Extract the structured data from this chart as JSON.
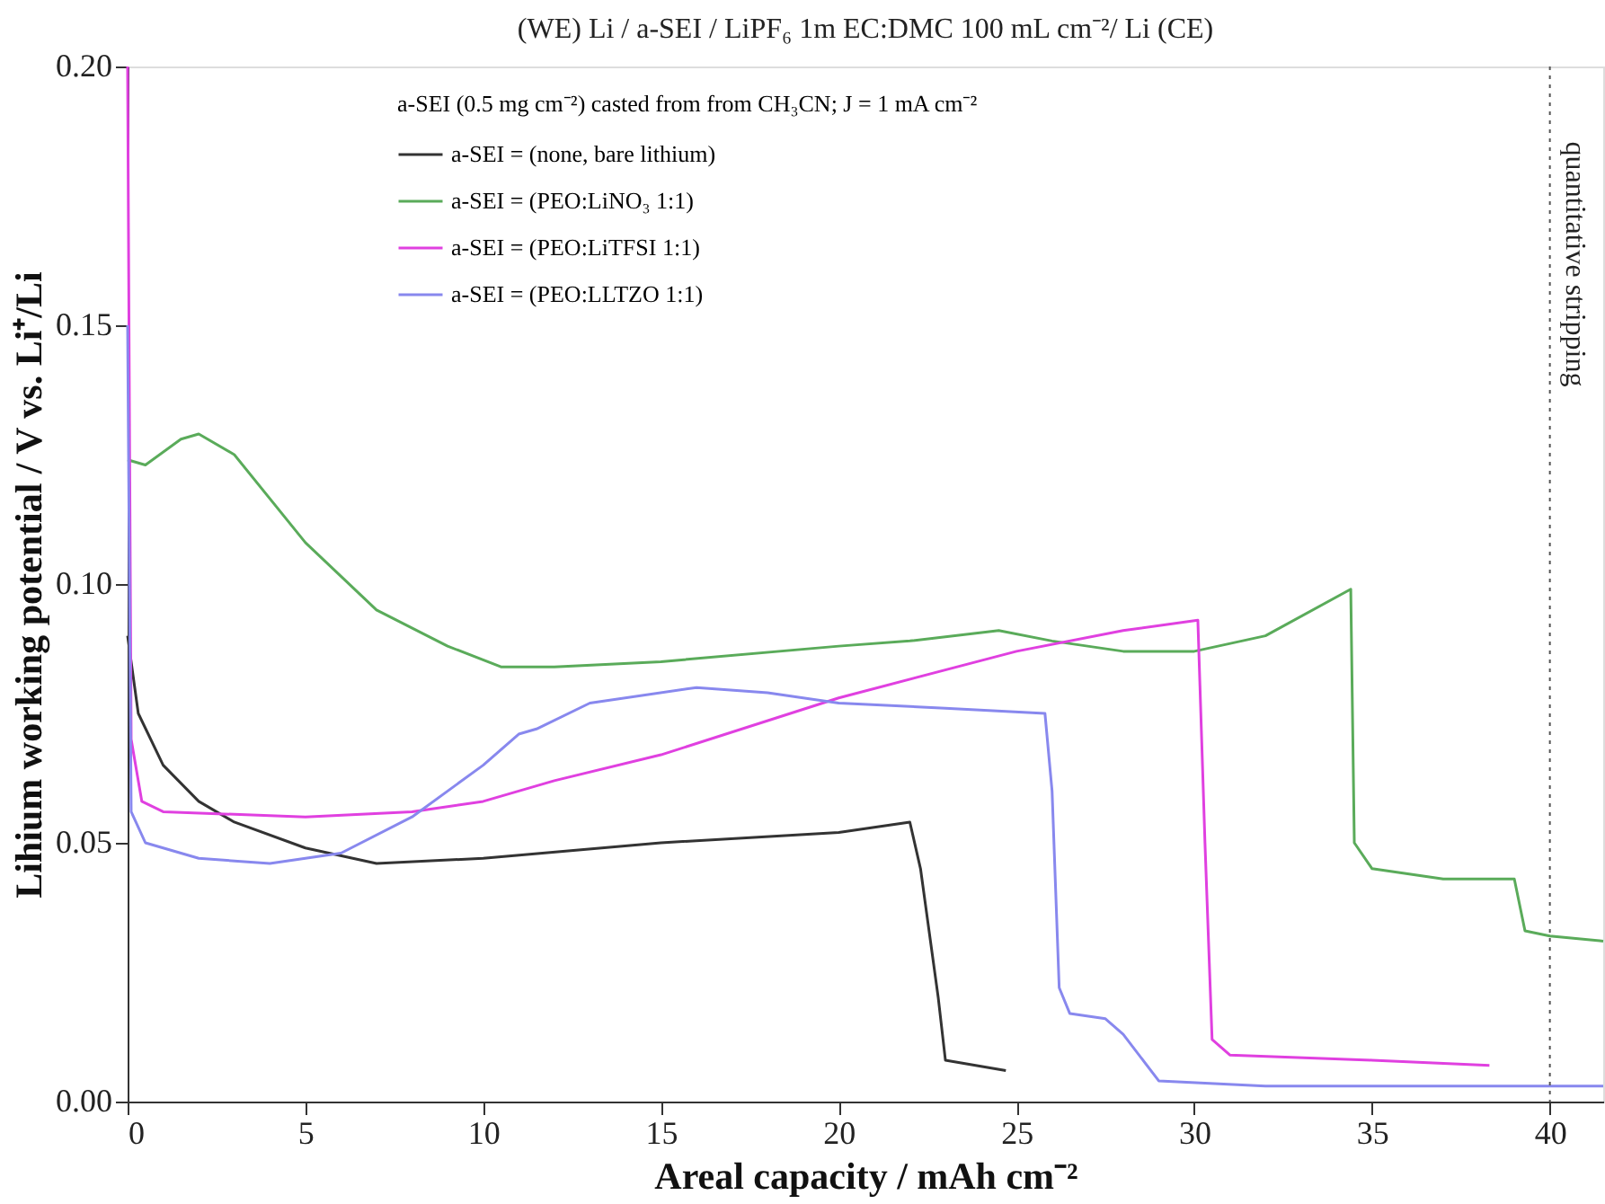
{
  "chart_data": {
    "type": "line",
    "title": "(WE) Li / a-SEI / LiPF₆ 1m EC:DMC 100 mL cm⁻²/ Li (CE)",
    "xlabel": "Areal capacity / mAh cm⁻²",
    "ylabel": "Lihium working potential / V vs. Li⁺/Li",
    "legend_title": "a-SEI (0.5 mg cm⁻²) casted from from CH₃CN; J = 1 mA cm⁻²",
    "legend": "top",
    "grid": false,
    "line_style": "solid",
    "marker": "none",
    "xlim": [
      0,
      41.5
    ],
    "xticks": [
      0,
      5,
      10,
      15,
      20,
      25,
      30,
      35,
      40
    ],
    "ylim": [
      0,
      0.2
    ],
    "yticks": [
      {
        "value": 0,
        "label": "0.00"
      },
      {
        "value": 0.05,
        "label": "0.05"
      },
      {
        "value": 0.1,
        "label": "0.10"
      },
      {
        "value": 0.15,
        "label": "0.15"
      },
      {
        "value": 0.2,
        "label": "0.20"
      }
    ],
    "ref_lines": [
      {
        "axis": "x",
        "value": 40,
        "label": "quantitative stripping",
        "color": "#555555",
        "line_style": "dotted"
      }
    ],
    "series": [
      {
        "name": "a-SEI = (none, bare lithium)",
        "color": "#333333",
        "x": [
          0,
          0.3,
          1,
          2,
          3,
          5,
          7,
          10,
          15,
          20,
          22,
          22.3,
          22.8,
          23,
          24.7
        ],
        "values": [
          0.09,
          0.075,
          0.065,
          0.058,
          0.054,
          0.049,
          0.046,
          0.047,
          0.05,
          0.052,
          0.054,
          0.045,
          0.02,
          0.008,
          0.006
        ]
      },
      {
        "name": "a-SEI = (PEO:LiNO₃ 1:1)",
        "color": "#5aab5a",
        "x": [
          0,
          0.5,
          1.5,
          2,
          3,
          5,
          7,
          9,
          10.5,
          12,
          15,
          20,
          22,
          24.5,
          26,
          28,
          30,
          32,
          34.4,
          34.5,
          35,
          37,
          39,
          39.3,
          40,
          41.5
        ],
        "values": [
          0.124,
          0.123,
          0.128,
          0.129,
          0.125,
          0.108,
          0.095,
          0.088,
          0.084,
          0.084,
          0.085,
          0.088,
          0.089,
          0.091,
          0.089,
          0.087,
          0.087,
          0.09,
          0.099,
          0.05,
          0.045,
          0.043,
          0.043,
          0.033,
          0.032,
          0.031
        ]
      },
      {
        "name": "a-SEI = (PEO:LiTFSI 1:1)",
        "color": "#e040e0",
        "x": [
          0,
          0.1,
          0.4,
          1,
          5,
          8,
          10,
          12,
          15,
          20,
          25,
          28,
          30.1,
          30.3,
          30.5,
          31,
          35,
          38.3
        ],
        "values": [
          0.2,
          0.07,
          0.058,
          0.056,
          0.055,
          0.056,
          0.058,
          0.062,
          0.067,
          0.078,
          0.087,
          0.091,
          0.093,
          0.05,
          0.012,
          0.009,
          0.008,
          0.007
        ]
      },
      {
        "name": "a-SEI = (PEO:LLTZO 1:1)",
        "color": "#8888ee",
        "x": [
          0,
          0.1,
          0.5,
          2,
          4,
          6,
          8,
          10,
          11,
          11.5,
          13,
          16,
          18,
          20,
          23,
          25.8,
          26,
          26.2,
          26.5,
          27.5,
          28,
          29,
          32,
          41.5
        ],
        "values": [
          0.15,
          0.056,
          0.05,
          0.047,
          0.046,
          0.048,
          0.055,
          0.065,
          0.071,
          0.072,
          0.077,
          0.08,
          0.079,
          0.077,
          0.076,
          0.075,
          0.06,
          0.022,
          0.017,
          0.016,
          0.013,
          0.004,
          0.003,
          0.003
        ]
      }
    ]
  }
}
